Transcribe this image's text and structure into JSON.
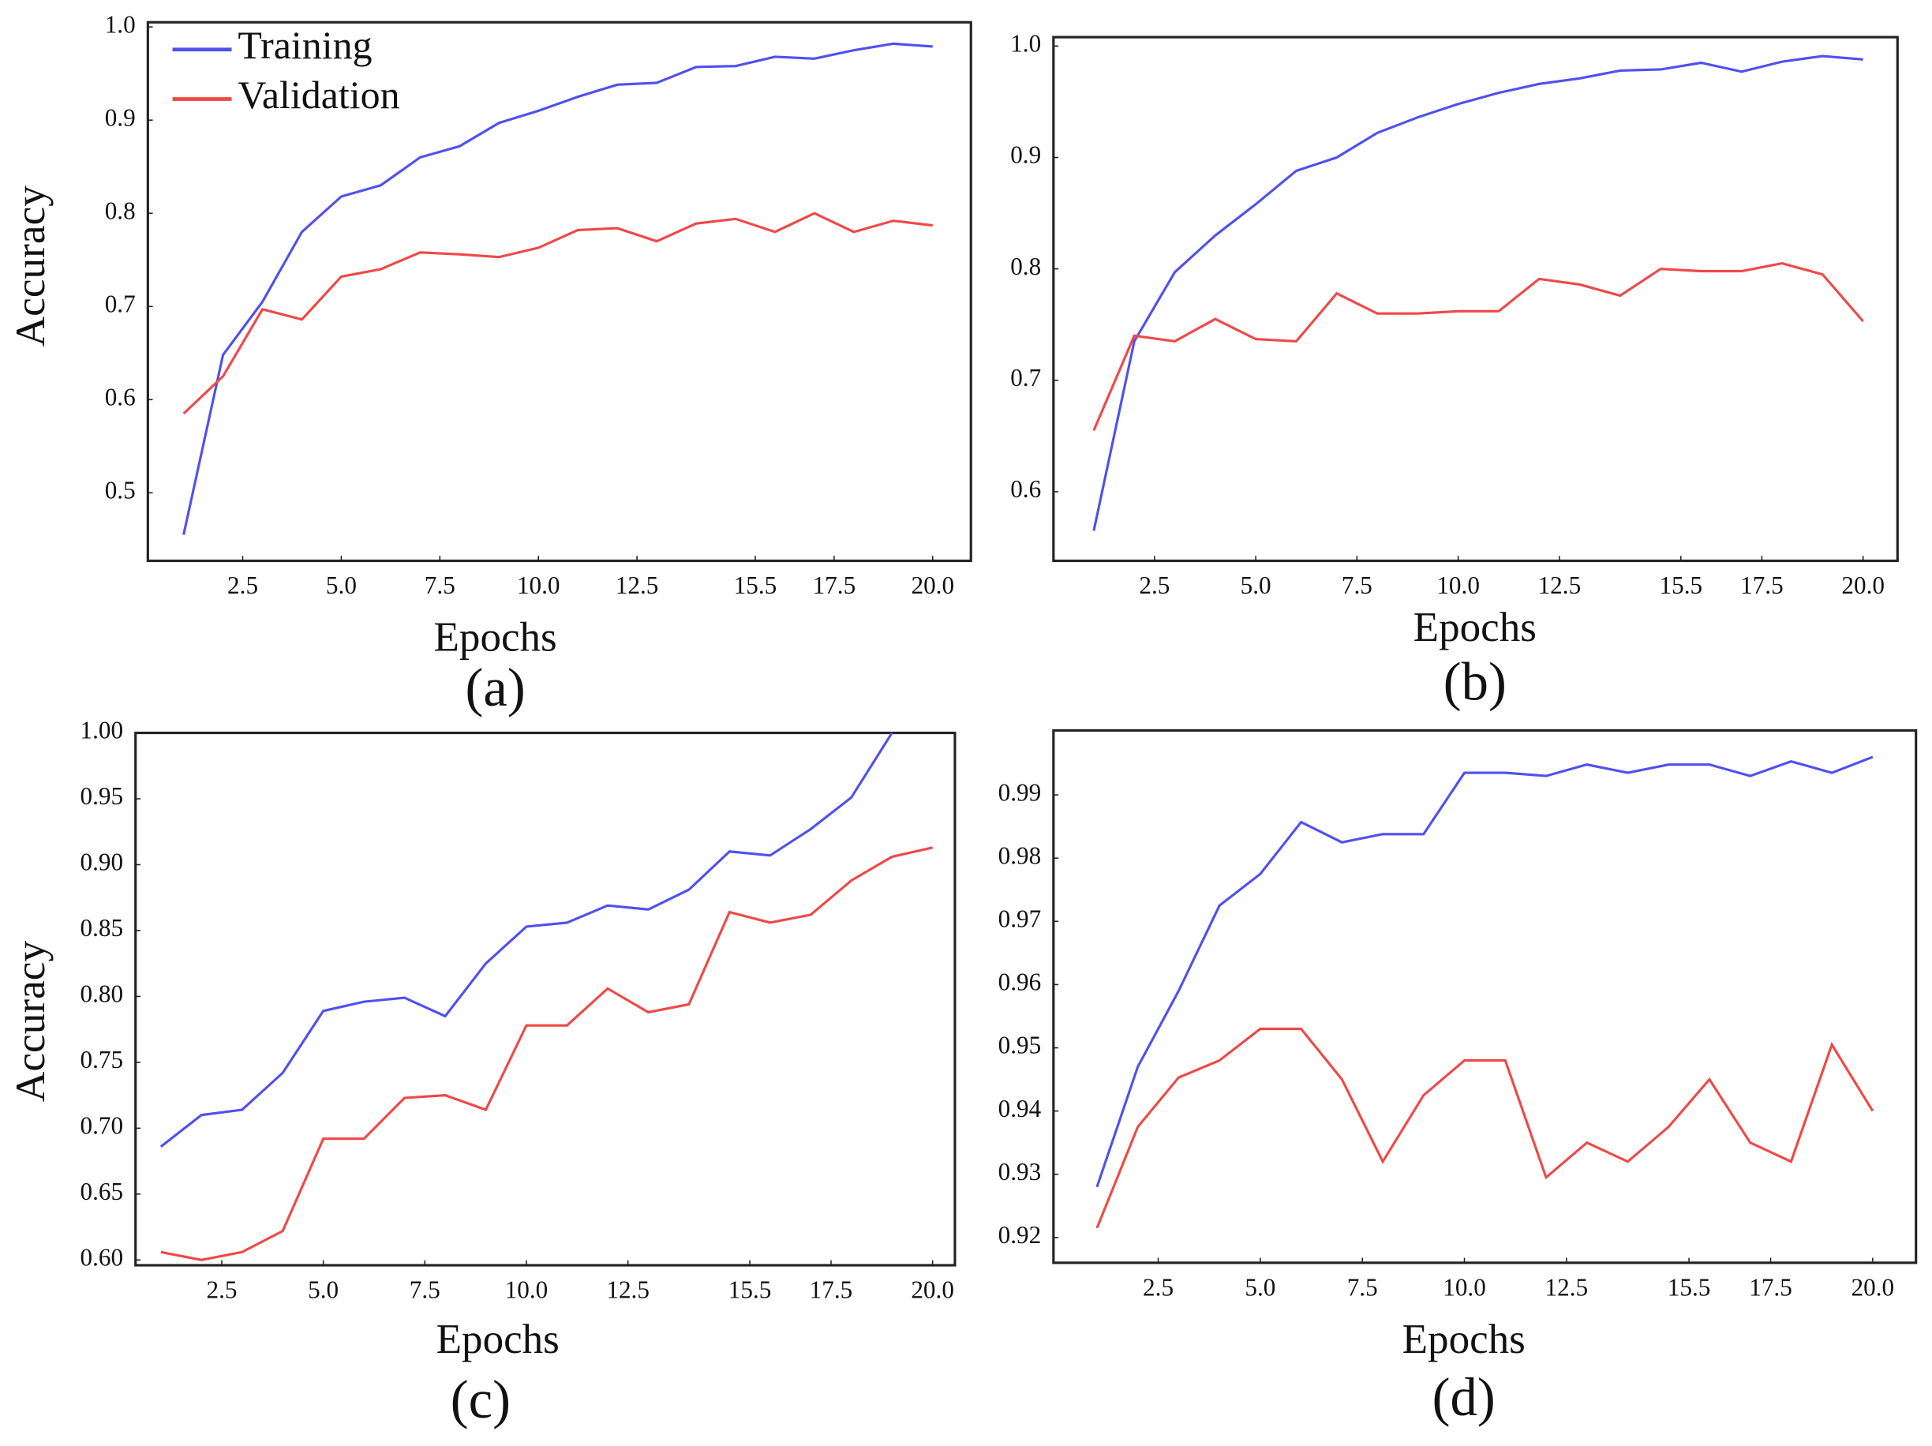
{
  "chart_data": [
    {
      "type": "line",
      "caption": "(a)",
      "xlabel": "Epochs",
      "ylabel": "Accuracy",
      "legend": true,
      "x": [
        1,
        2,
        3,
        4,
        5,
        6,
        7,
        8,
        9,
        10,
        11,
        12,
        13,
        14,
        15,
        16,
        17,
        18,
        19,
        20
      ],
      "series": [
        {
          "name": "Training",
          "color": "#5050f0",
          "values": [
            0.455,
            0.648,
            0.705,
            0.78,
            0.818,
            0.83,
            0.86,
            0.872,
            0.897,
            0.91,
            0.925,
            0.938,
            0.94,
            0.957,
            0.958,
            0.968,
            0.966,
            0.975,
            0.982,
            0.979
          ]
        },
        {
          "name": "Validation",
          "color": "#f04848",
          "values": [
            0.585,
            0.625,
            0.697,
            0.686,
            0.732,
            0.74,
            0.758,
            0.756,
            0.753,
            0.763,
            0.782,
            0.784,
            0.77,
            0.789,
            0.794,
            0.78,
            0.8,
            0.78,
            0.792,
            0.787
          ]
        }
      ],
      "xlim": [
        0.094,
        20.97
      ],
      "xticks": [
        2.5,
        {
          "value": 5,
          "label": "5.0"
        },
        7.5,
        {
          "value": 10,
          "label": "10.0"
        },
        12.5,
        15.5,
        17.5,
        {
          "value": 20,
          "label": "20.0"
        }
      ],
      "ylim": [
        0.427,
        1.005
      ],
      "yticks": [
        0.5,
        0.6,
        0.7,
        0.8,
        0.9,
        {
          "value": 1,
          "label": "1.0"
        }
      ],
      "grid": false
    },
    {
      "type": "line",
      "caption": "(b)",
      "xlabel": "Epochs",
      "legend": false,
      "x": [
        1,
        2,
        3,
        4,
        5,
        6,
        7,
        8,
        9,
        10,
        11,
        12,
        13,
        14,
        15,
        16,
        17,
        18,
        19,
        20
      ],
      "series": [
        {
          "color": "#5050f0",
          "values": [
            0.565,
            0.735,
            0.797,
            0.83,
            0.858,
            0.888,
            0.9,
            0.922,
            0.936,
            0.948,
            0.958,
            0.966,
            0.971,
            0.978,
            0.979,
            0.985,
            0.977,
            0.986,
            0.991,
            0.988
          ]
        },
        {
          "color": "#f04848",
          "values": [
            0.655,
            0.74,
            0.735,
            0.755,
            0.737,
            0.735,
            0.778,
            0.76,
            0.76,
            0.762,
            0.762,
            0.791,
            0.786,
            0.776,
            0.8,
            0.798,
            0.798,
            0.805,
            0.795,
            0.753
          ]
        }
      ],
      "xlim": [
        0.005,
        20.85
      ],
      "xticks": [
        2.5,
        {
          "value": 5,
          "label": "5.0"
        },
        7.5,
        {
          "value": 10,
          "label": "10.0"
        },
        12.5,
        15.5,
        17.5,
        {
          "value": 20,
          "label": "20.0"
        }
      ],
      "ylim": [
        0.538,
        1.008
      ],
      "yticks": [
        0.6,
        0.7,
        0.8,
        0.9,
        {
          "value": 1,
          "label": "1.0"
        }
      ],
      "grid": false
    },
    {
      "type": "line",
      "caption": "(c)",
      "xlabel": "Epochs",
      "ylabel": "Accuracy",
      "legend": false,
      "x": [
        1,
        2,
        3,
        4,
        5,
        6,
        7,
        8,
        9,
        10,
        11,
        12,
        13,
        14,
        15,
        16,
        17,
        18,
        19,
        20
      ],
      "series": [
        {
          "color": "#5050f0",
          "values": [
            0.686,
            0.71,
            0.714,
            0.742,
            0.789,
            0.796,
            0.799,
            0.785,
            0.825,
            0.853,
            0.856,
            0.869,
            0.866,
            0.881,
            0.91,
            0.907,
            0.927,
            0.951,
            1.0,
            null
          ]
        },
        {
          "color": "#f04848",
          "values": [
            0.606,
            0.6,
            0.606,
            0.622,
            0.692,
            0.692,
            0.723,
            0.725,
            0.714,
            0.778,
            0.778,
            0.806,
            0.788,
            0.794,
            0.864,
            0.856,
            0.862,
            0.888,
            0.906,
            0.913
          ]
        }
      ],
      "xlim": [
        0.377,
        20.55
      ],
      "xticks": [
        2.5,
        {
          "value": 5,
          "label": "5.0"
        },
        7.5,
        {
          "value": 10,
          "label": "10.0"
        },
        12.5,
        15.5,
        17.5,
        {
          "value": 20,
          "label": "20.0"
        }
      ],
      "ylim": [
        0.596,
        1.0
      ],
      "yticks": [
        {
          "value": 0.6,
          "label": "0.60"
        },
        0.65,
        {
          "value": 0.7,
          "label": "0.70"
        },
        0.75,
        {
          "value": 0.8,
          "label": "0.80"
        },
        0.85,
        {
          "value": 0.9,
          "label": "0.90"
        },
        0.95,
        {
          "value": 1,
          "label": "1.00"
        }
      ],
      "grid": false
    },
    {
      "type": "line",
      "caption": "(d)",
      "xlabel": "Epochs",
      "legend": false,
      "x": [
        1,
        2,
        3,
        4,
        5,
        6,
        7,
        8,
        9,
        10,
        11,
        12,
        13,
        14,
        15,
        16,
        17,
        18,
        19,
        20
      ],
      "series": [
        {
          "color": "#5050f0",
          "values": [
            0.928,
            0.947,
            0.959,
            0.9725,
            0.9775,
            0.9857,
            0.9825,
            0.9838,
            0.9838,
            0.9935,
            0.9935,
            0.993,
            0.9948,
            0.9935,
            0.9948,
            0.9948,
            0.993,
            0.9953,
            0.9935,
            0.996
          ]
        },
        {
          "color": "#f04848",
          "values": [
            0.9215,
            0.9375,
            0.9453,
            0.948,
            0.953,
            0.953,
            0.945,
            0.932,
            0.9425,
            0.948,
            0.948,
            0.9295,
            0.935,
            0.932,
            0.9375,
            0.945,
            0.935,
            0.932,
            0.9505,
            0.94
          ]
        }
      ],
      "xlim": [
        -0.065,
        21.06
      ],
      "xticks": [
        2.5,
        {
          "value": 5,
          "label": "5.0"
        },
        7.5,
        {
          "value": 10,
          "label": "10.0"
        },
        12.5,
        15.5,
        17.5,
        {
          "value": 20,
          "label": "20.0"
        }
      ],
      "ylim": [
        0.916,
        1.0002
      ],
      "yticks": [
        0.92,
        0.93,
        0.94,
        0.95,
        0.96,
        0.97,
        0.98,
        0.99
      ],
      "grid": false
    }
  ]
}
